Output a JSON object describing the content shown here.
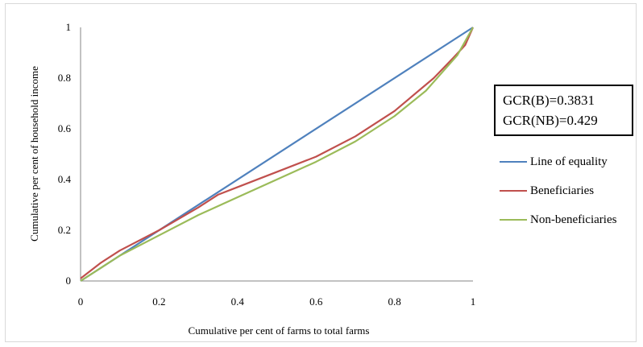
{
  "chart_data": {
    "type": "line",
    "title": "",
    "xlabel": "Cumulative per cent of farms to total farms",
    "ylabel": "Cumulative per cent of household income",
    "xlim": [
      0,
      1
    ],
    "ylim": [
      0,
      1
    ],
    "x_ticks": [
      "0",
      "0.2",
      "0.4",
      "0.6",
      "0.8",
      "1"
    ],
    "y_ticks": [
      "0",
      "0.2",
      "0.4",
      "0.6",
      "0.8",
      "1"
    ],
    "grid": false,
    "legend_position": "right",
    "annotation": [
      "GCR(B)=0.3831",
      "GCR(NB)=0.429"
    ],
    "series": [
      {
        "name": "Line of equality",
        "color": "#4f81bd",
        "x": [
          0,
          1
        ],
        "y": [
          0,
          1
        ]
      },
      {
        "name": "Beneficiaries",
        "color": "#c0504d",
        "x": [
          0,
          0.05,
          0.1,
          0.2,
          0.3,
          0.35,
          0.4,
          0.5,
          0.6,
          0.7,
          0.8,
          0.9,
          0.95,
          0.98,
          1
        ],
        "y": [
          0.01,
          0.07,
          0.12,
          0.2,
          0.29,
          0.34,
          0.37,
          0.43,
          0.49,
          0.57,
          0.67,
          0.8,
          0.88,
          0.93,
          1
        ]
      },
      {
        "name": "Non-beneficiaries",
        "color": "#9bbb59",
        "x": [
          0,
          0.1,
          0.2,
          0.3,
          0.4,
          0.5,
          0.6,
          0.7,
          0.8,
          0.88,
          0.92,
          0.96,
          1
        ],
        "y": [
          0,
          0.1,
          0.18,
          0.26,
          0.33,
          0.4,
          0.47,
          0.55,
          0.65,
          0.75,
          0.82,
          0.89,
          1
        ]
      }
    ]
  }
}
